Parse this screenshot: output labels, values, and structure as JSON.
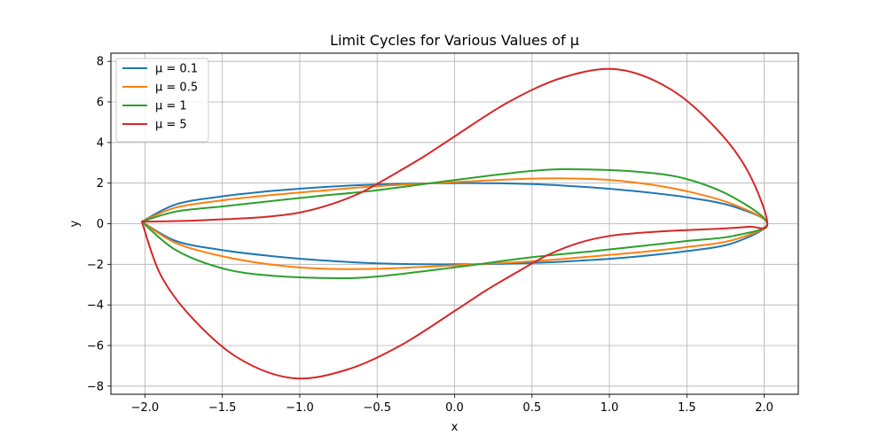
{
  "chart_data": {
    "type": "line",
    "title": "Limit Cycles for Various Values of μ",
    "xlabel": "x",
    "ylabel": "y",
    "xlim": [
      -2.22,
      2.22
    ],
    "ylim": [
      -8.4,
      8.4
    ],
    "xticks": [
      -2.0,
      -1.5,
      -1.0,
      -0.5,
      0.0,
      0.5,
      1.0,
      1.5,
      2.0
    ],
    "xtick_labels": [
      "−2.0",
      "−1.5",
      "−1.0",
      "−0.5",
      "0.0",
      "0.5",
      "1.0",
      "1.5",
      "2.0"
    ],
    "yticks": [
      -8,
      -6,
      -4,
      -2,
      0,
      2,
      4,
      6,
      8
    ],
    "ytick_labels": [
      "−8",
      "−6",
      "−4",
      "−2",
      "0",
      "2",
      "4",
      "6",
      "8"
    ],
    "grid": true,
    "legend_position": "upper-left",
    "series": [
      {
        "name": "μ = 0.1",
        "color": "#1f77b4",
        "x": [
          -2.02,
          -1.8,
          -1.5,
          -1.2,
          -0.9,
          -0.5,
          0.0,
          0.5,
          0.9,
          1.2,
          1.5,
          1.8,
          2.02,
          1.8,
          1.5,
          1.2,
          0.9,
          0.5,
          0.0,
          -0.5,
          -0.9,
          -1.2,
          -1.5,
          -1.8,
          -2.02
        ],
        "y": [
          0.1,
          0.95,
          1.35,
          1.6,
          1.78,
          1.93,
          2.0,
          1.95,
          1.78,
          1.58,
          1.3,
          0.85,
          0.0,
          -0.95,
          -1.35,
          -1.6,
          -1.78,
          -1.93,
          -2.0,
          -1.95,
          -1.78,
          -1.58,
          -1.3,
          -0.85,
          0.1
        ]
      },
      {
        "name": "μ = 0.5",
        "color": "#ff7f0e",
        "x": [
          -2.02,
          -1.8,
          -1.5,
          -1.2,
          -0.9,
          -0.5,
          0.0,
          0.5,
          0.9,
          1.2,
          1.5,
          1.8,
          2.02,
          1.8,
          1.5,
          1.2,
          0.9,
          0.5,
          0.0,
          -0.5,
          -0.9,
          -1.2,
          -1.5,
          -1.8,
          -2.02
        ],
        "y": [
          0.1,
          0.8,
          1.15,
          1.4,
          1.6,
          1.85,
          2.05,
          2.22,
          2.2,
          2.0,
          1.6,
          0.95,
          0.0,
          -0.8,
          -1.15,
          -1.4,
          -1.6,
          -1.85,
          -2.05,
          -2.22,
          -2.2,
          -2.0,
          -1.6,
          -0.95,
          0.1
        ]
      },
      {
        "name": "μ = 1",
        "color": "#2ca02c",
        "x": [
          -2.02,
          -1.8,
          -1.5,
          -1.2,
          -0.9,
          -0.5,
          0.0,
          0.5,
          0.8,
          1.2,
          1.5,
          1.8,
          2.02,
          1.8,
          1.5,
          1.2,
          0.9,
          0.5,
          0.0,
          -0.5,
          -0.8,
          -1.2,
          -1.5,
          -1.8,
          -2.02
        ],
        "y": [
          0.1,
          0.6,
          0.85,
          1.1,
          1.35,
          1.65,
          2.15,
          2.6,
          2.68,
          2.55,
          2.2,
          1.3,
          0.0,
          -0.6,
          -0.85,
          -1.1,
          -1.35,
          -1.65,
          -2.15,
          -2.6,
          -2.68,
          -2.55,
          -2.2,
          -1.3,
          0.1
        ]
      },
      {
        "name": "μ = 5",
        "color": "#d62728",
        "x": [
          -2.02,
          -1.7,
          -1.4,
          -1.2,
          -1.0,
          -0.8,
          -0.6,
          -0.4,
          -0.2,
          0.0,
          0.35,
          0.7,
          1.05,
          1.4,
          1.7,
          1.9,
          2.02,
          1.9,
          1.7,
          1.4,
          1.2,
          1.0,
          0.8,
          0.6,
          0.4,
          0.2,
          0.0,
          -0.35,
          -0.7,
          -1.05,
          -1.4,
          -1.7,
          -1.9,
          -2.02
        ],
        "y": [
          0.1,
          0.15,
          0.25,
          0.35,
          0.55,
          0.95,
          1.55,
          2.4,
          3.3,
          4.3,
          6.0,
          7.2,
          7.6,
          6.6,
          4.6,
          2.5,
          0.0,
          -0.15,
          -0.25,
          -0.35,
          -0.45,
          -0.6,
          -0.95,
          -1.55,
          -2.4,
          -3.3,
          -4.3,
          -6.0,
          -7.2,
          -7.6,
          -6.6,
          -4.6,
          -2.5,
          0.1
        ]
      }
    ]
  }
}
